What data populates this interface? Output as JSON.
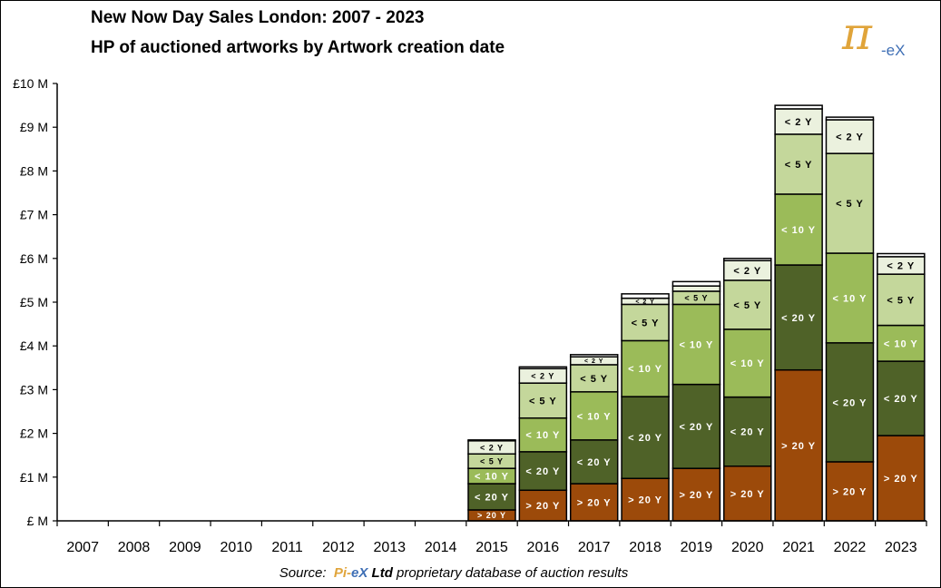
{
  "header": {
    "title_line1": "New Now Day Sales London: 2007 - 2023",
    "title_line2": "HP of auctioned artworks by Artwork creation date"
  },
  "logo": {
    "pi": "π",
    "suffix": "-eX",
    "pi_color": "#e0a43a",
    "suffix_color": "#3f6fb5"
  },
  "source": {
    "prefix": "Source:",
    "brand_pi": "Pi-",
    "brand_ex": "eX",
    "brand_ltd": "Ltd",
    "suffix": "proprietary database of auction results"
  },
  "chart_data": {
    "type": "bar",
    "stacked": true,
    "categories": [
      "2007",
      "2008",
      "2009",
      "2010",
      "2011",
      "2012",
      "2013",
      "2014",
      "2015",
      "2016",
      "2017",
      "2018",
      "2019",
      "2020",
      "2021",
      "2022",
      "2023"
    ],
    "ylim": [
      0,
      10
    ],
    "y_ticks": [
      0,
      1,
      2,
      3,
      4,
      5,
      6,
      7,
      8,
      9,
      10
    ],
    "y_tick_labels": [
      "£ M",
      "£1 M",
      "£2 M",
      "£3 M",
      "£4 M",
      "£5 M",
      "£6 M",
      "£7 M",
      "£8 M",
      "£9 M",
      "£10 M"
    ],
    "grid": false,
    "series": [
      {
        "name": "> 20 Y",
        "color": "#9c4a0a",
        "text_color": "#ffffff",
        "values": [
          0,
          0,
          0,
          0,
          0,
          0,
          0,
          0,
          0.25,
          0.7,
          0.85,
          0.97,
          1.2,
          1.25,
          3.45,
          1.35,
          1.95
        ]
      },
      {
        "name": "< 20 Y",
        "color": "#4f6228",
        "text_color": "#ffffff",
        "values": [
          0,
          0,
          0,
          0,
          0,
          0,
          0,
          0,
          0.6,
          0.88,
          1.0,
          1.87,
          1.92,
          1.58,
          2.4,
          2.72,
          1.7
        ]
      },
      {
        "name": "< 10 Y",
        "color": "#9bbb59",
        "text_color": "#ffffff",
        "values": [
          0,
          0,
          0,
          0,
          0,
          0,
          0,
          0,
          0.35,
          0.77,
          1.1,
          1.28,
          1.83,
          1.55,
          1.62,
          2.05,
          0.82
        ]
      },
      {
        "name": "< 5 Y",
        "color": "#c4d79b",
        "text_color": "#000000",
        "values": [
          0,
          0,
          0,
          0,
          0,
          0,
          0,
          0,
          0.33,
          0.8,
          0.62,
          0.83,
          0.3,
          1.12,
          1.37,
          2.28,
          1.17
        ]
      },
      {
        "name": "< 2 Y",
        "color": "#ebf1de",
        "text_color": "#000000",
        "values": [
          0,
          0,
          0,
          0,
          0,
          0,
          0,
          0,
          0.3,
          0.33,
          0.18,
          0.14,
          0.12,
          0.45,
          0.58,
          0.77,
          0.4
        ]
      },
      {
        "name": "top",
        "color": "#ffffff",
        "text_color": "#000000",
        "values": [
          0,
          0,
          0,
          0,
          0,
          0,
          0,
          0,
          0.02,
          0.04,
          0.05,
          0.1,
          0.1,
          0.05,
          0.08,
          0.06,
          0.07
        ]
      }
    ],
    "segment_labels": [
      "> 20 Y",
      "< 20 Y",
      "< 10 Y",
      "< 5 Y",
      "< 2 Y",
      ""
    ]
  }
}
